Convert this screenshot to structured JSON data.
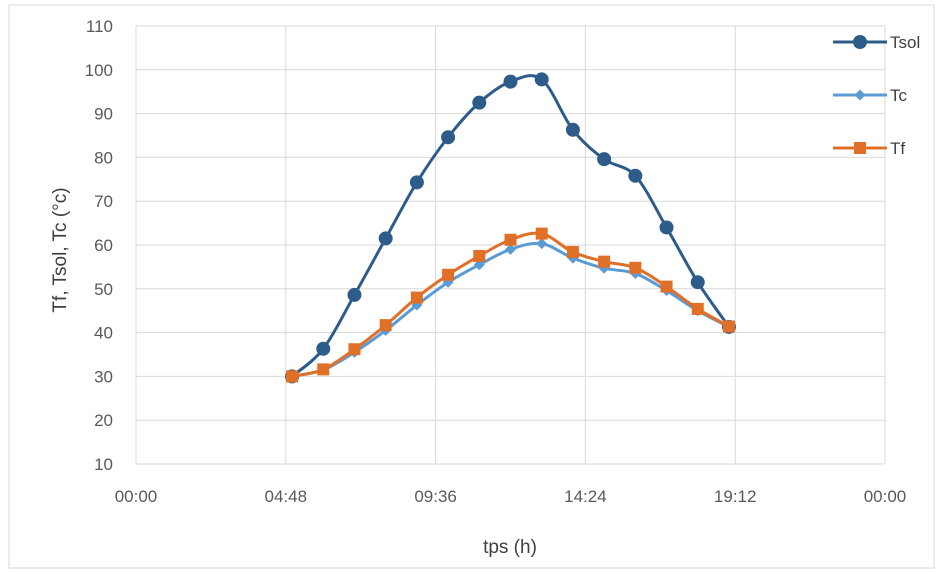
{
  "chart_data": {
    "type": "line",
    "title": "",
    "xlabel": "tps (h)",
    "ylabel": "Tf, Tsol, Tc  (°c)",
    "xlim": [
      "00:00",
      "24:00"
    ],
    "ylim": [
      10,
      110
    ],
    "x_tick_labels": [
      "00:00",
      "04:48",
      "09:36",
      "14:24",
      "19:12",
      "00:00"
    ],
    "y_tick_labels": [
      "10",
      "20",
      "30",
      "40",
      "50",
      "60",
      "70",
      "80",
      "90",
      "100",
      "110"
    ],
    "grid": true,
    "legend_position": "top-right",
    "x": [
      "05:00",
      "06:00",
      "07:00",
      "08:00",
      "09:00",
      "10:00",
      "11:00",
      "12:00",
      "13:00",
      "14:00",
      "15:00",
      "16:00",
      "17:00",
      "18:00",
      "19:00"
    ],
    "series": [
      {
        "name": "Tsol",
        "color": "#2e5c8a",
        "marker": "circle",
        "values": [
          30.0,
          36.3,
          48.6,
          61.5,
          74.3,
          84.6,
          92.5,
          97.3,
          97.8,
          86.3,
          79.6,
          75.8,
          64.0,
          51.5,
          41.3
        ]
      },
      {
        "name": "Tc",
        "color": "#5b9bd5",
        "marker": "diamond",
        "values": [
          30.0,
          31.5,
          35.5,
          40.5,
          46.3,
          51.5,
          55.5,
          59.0,
          60.3,
          57.0,
          54.7,
          53.5,
          49.6,
          45.0,
          41.3
        ]
      },
      {
        "name": "Tf",
        "color": "#e07028",
        "marker": "square",
        "values": [
          30.0,
          31.6,
          36.2,
          41.7,
          48.0,
          53.2,
          57.5,
          61.2,
          62.6,
          58.4,
          56.2,
          54.8,
          50.5,
          45.4,
          41.4
        ]
      }
    ]
  }
}
